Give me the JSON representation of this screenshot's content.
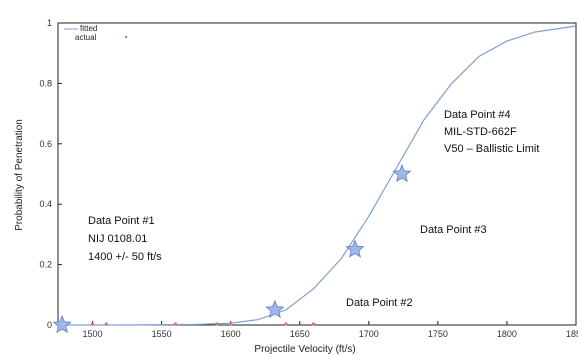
{
  "chart_data": {
    "type": "scatter",
    "xlabel": "Projectile Velocity (ft/s)",
    "ylabel": "Probability of Penetration",
    "xlim": [
      1475,
      1850
    ],
    "ylim": [
      0,
      1
    ],
    "x_ticks": [
      "1500",
      "1550",
      "1600",
      "1650",
      "1700",
      "1750",
      "1800",
      "1850"
    ],
    "y_ticks": [
      "0",
      "0.2",
      "0.4",
      "0.6",
      "0.8",
      "1"
    ],
    "legend": {
      "position": "top-left",
      "entries": [
        "fitted",
        "actual"
      ]
    },
    "colors": {
      "fitted": "#7f9fd0",
      "actual": "#e07070",
      "star_fill": "#9fb7e6",
      "star_stroke": "#5f7fc0"
    },
    "series": [
      {
        "name": "fitted",
        "kind": "line",
        "x": [
          1475,
          1525,
          1575,
          1600,
          1620,
          1640,
          1660,
          1680,
          1700,
          1720,
          1740,
          1760,
          1780,
          1800,
          1820,
          1850
        ],
        "y": [
          0.0,
          0.0,
          0.002,
          0.006,
          0.018,
          0.05,
          0.12,
          0.22,
          0.36,
          0.52,
          0.68,
          0.8,
          0.89,
          0.94,
          0.97,
          0.99
        ]
      },
      {
        "name": "actual",
        "kind": "scatter",
        "x": [
          1500,
          1510,
          1560,
          1590,
          1600,
          1640,
          1660
        ],
        "y": [
          0,
          0,
          0,
          0,
          0,
          0,
          0
        ]
      }
    ],
    "highlighted_points": [
      {
        "x": 1478,
        "y": 0.0
      },
      {
        "x": 1632,
        "y": 0.05
      },
      {
        "x": 1690,
        "y": 0.25
      },
      {
        "x": 1724,
        "y": 0.5
      }
    ],
    "annotations": [
      {
        "lines": [
          "Data Point #1",
          "NIJ 0108.01",
          "1400 +/- 50 ft/s"
        ]
      },
      {
        "lines": [
          "Data Point #2"
        ]
      },
      {
        "lines": [
          "Data Point #3"
        ]
      },
      {
        "lines": [
          "Data Point #4",
          "MIL-STD-662F",
          "V50 – Ballistic Limit"
        ]
      }
    ]
  }
}
